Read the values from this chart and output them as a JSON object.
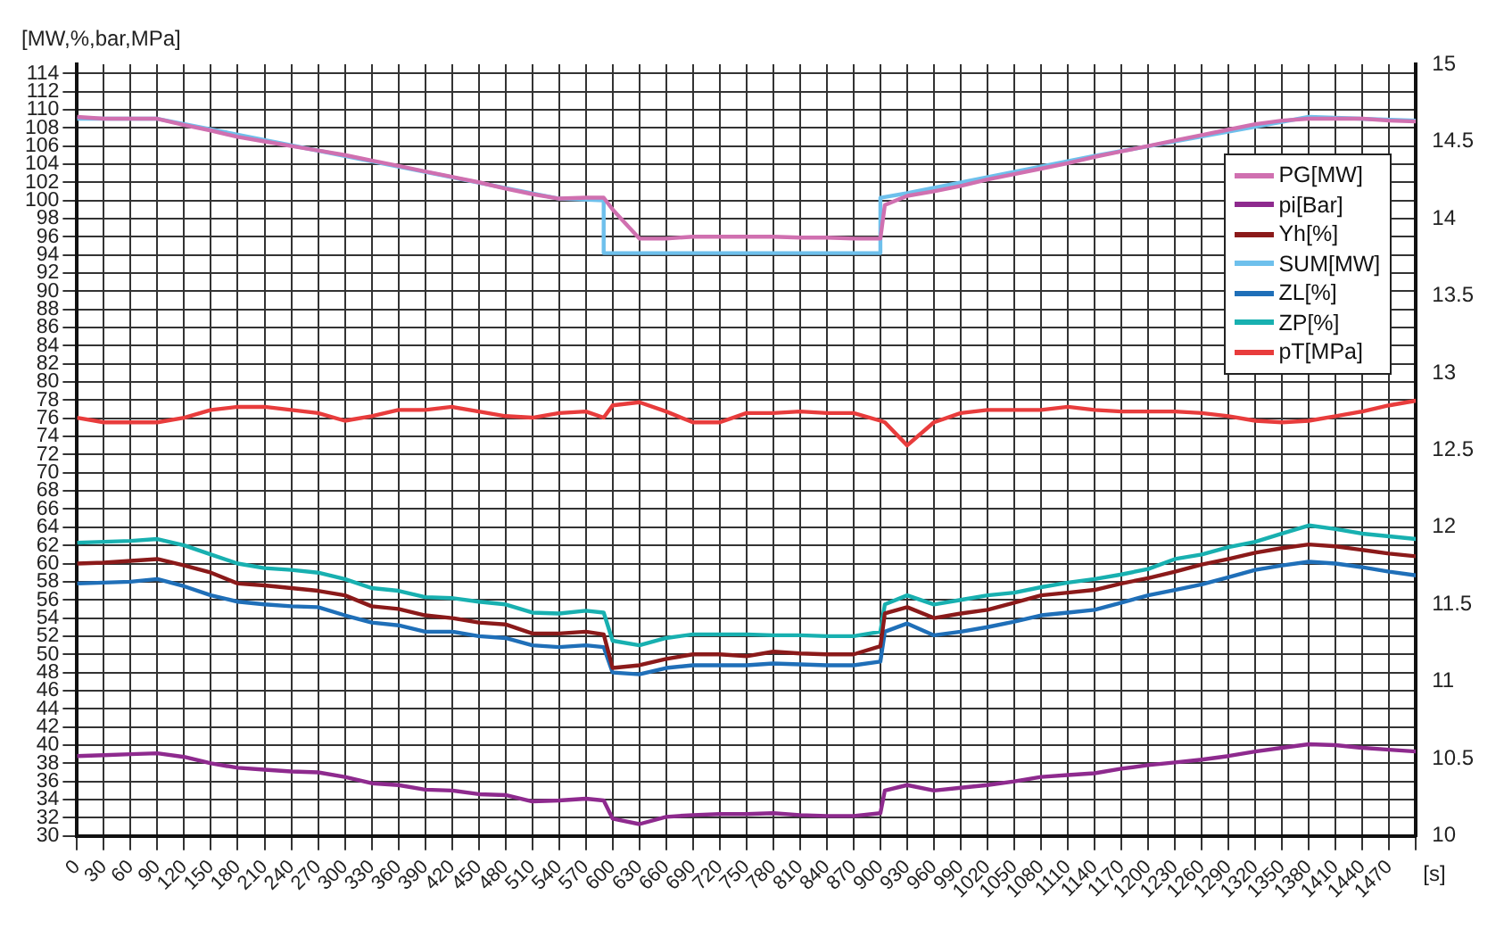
{
  "chart_data": {
    "type": "line",
    "ylabel": "[MW,%,bar,MPa]",
    "xlabel": "[s]",
    "x": [
      0,
      30,
      60,
      90,
      120,
      150,
      180,
      210,
      240,
      270,
      300,
      330,
      360,
      390,
      420,
      450,
      480,
      510,
      540,
      570,
      590,
      600,
      630,
      660,
      690,
      720,
      750,
      780,
      810,
      840,
      870,
      900,
      905,
      930,
      960,
      990,
      1020,
      1050,
      1080,
      1110,
      1140,
      1170,
      1200,
      1230,
      1260,
      1290,
      1320,
      1350,
      1380,
      1410,
      1440,
      1470,
      1500
    ],
    "series": [
      {
        "name": "PG[MW]",
        "color": "#d070b0",
        "values": [
          109.2,
          109,
          109,
          109,
          108.3,
          107.7,
          107,
          106.5,
          106,
          105.5,
          105,
          104.4,
          103.8,
          103.2,
          102.6,
          102,
          101.3,
          100.7,
          100.2,
          100.3,
          100.3,
          99,
          95.8,
          95.8,
          96,
          96,
          96,
          96,
          95.9,
          95.9,
          95.8,
          95.8,
          99.5,
          100.5,
          101,
          101.6,
          102.3,
          102.9,
          103.5,
          104.1,
          104.8,
          105.4,
          106,
          106.6,
          107.2,
          107.8,
          108.4,
          108.8,
          109,
          109,
          109,
          108.8,
          108.7
        ]
      },
      {
        "name": "pi[Bar]",
        "color": "#8e2a8e",
        "values": [
          38.8,
          38.9,
          39,
          39.1,
          38.7,
          38,
          37.5,
          37.3,
          37.1,
          37,
          36.5,
          35.8,
          35.6,
          35.1,
          35,
          34.6,
          34.5,
          33.8,
          33.9,
          34.1,
          33.9,
          31.9,
          31.3,
          32.1,
          32.3,
          32.4,
          32.4,
          32.5,
          32.3,
          32.2,
          32.2,
          32.5,
          35,
          35.6,
          35,
          35.3,
          35.6,
          36,
          36.5,
          36.7,
          36.9,
          37.4,
          37.8,
          38.1,
          38.4,
          38.8,
          39.3,
          39.7,
          40.1,
          40,
          39.7,
          39.5,
          39.3
        ]
      },
      {
        "name": "Yh[%]",
        "color": "#8b1a1a",
        "values": [
          60,
          60.1,
          60.3,
          60.5,
          59.8,
          59,
          57.8,
          57.6,
          57.3,
          57,
          56.5,
          55.3,
          55,
          54.3,
          54,
          53.5,
          53.3,
          52.3,
          52.3,
          52.5,
          52.2,
          48.5,
          48.8,
          49.5,
          50,
          50,
          49.8,
          50.3,
          50.1,
          50,
          50,
          50.9,
          54.5,
          55.2,
          54,
          54.5,
          54.9,
          55.7,
          56.5,
          56.8,
          57.1,
          57.8,
          58.4,
          59.1,
          59.9,
          60.5,
          61.2,
          61.7,
          62.1,
          61.9,
          61.5,
          61.1,
          60.8
        ]
      },
      {
        "name": "SUM[MW]",
        "color": "#6ec0ec",
        "x": [
          0,
          90,
          300,
          540,
          590,
          590,
          900,
          900,
          930,
          1140,
          1380,
          1500
        ],
        "values": [
          109,
          109,
          104.9,
          100.2,
          100,
          94.2,
          94.2,
          100.3,
          100.8,
          104.9,
          109.2,
          108.8
        ]
      },
      {
        "name": "ZL[%]",
        "color": "#1f6fb8",
        "values": [
          57.8,
          57.9,
          58,
          58.3,
          57.5,
          56.5,
          55.8,
          55.5,
          55.3,
          55.2,
          54.3,
          53.5,
          53.2,
          52.5,
          52.5,
          52,
          51.8,
          51,
          50.8,
          51,
          50.8,
          48,
          47.8,
          48.5,
          48.8,
          48.8,
          48.8,
          49,
          48.9,
          48.8,
          48.8,
          49.2,
          52.5,
          53.4,
          52.1,
          52.5,
          53,
          53.6,
          54.3,
          54.6,
          54.9,
          55.7,
          56.5,
          57.1,
          57.7,
          58.5,
          59.3,
          59.8,
          60.2,
          60,
          59.6,
          59.1,
          58.7
        ]
      },
      {
        "name": "ZP[%]",
        "color": "#18b0b0",
        "values": [
          62.3,
          62.4,
          62.5,
          62.7,
          62,
          61,
          60,
          59.5,
          59.3,
          59,
          58.3,
          57.3,
          57,
          56.3,
          56.2,
          55.8,
          55.5,
          54.6,
          54.5,
          54.8,
          54.6,
          51.5,
          51,
          51.8,
          52.2,
          52.2,
          52.2,
          52.1,
          52.1,
          52,
          52,
          52.5,
          55.5,
          56.5,
          55.5,
          56,
          56.5,
          56.8,
          57.4,
          57.9,
          58.3,
          58.8,
          59.4,
          60.5,
          61,
          61.8,
          62.4,
          63.3,
          64.2,
          63.8,
          63.3,
          63,
          62.7
        ]
      },
      {
        "name": "pT[MPa]",
        "color": "#e83c3c",
        "axis": "y2",
        "values": [
          12.71,
          12.68,
          12.68,
          12.68,
          12.71,
          12.76,
          12.78,
          12.78,
          12.76,
          12.74,
          12.69,
          12.72,
          12.76,
          12.76,
          12.78,
          12.75,
          12.72,
          12.71,
          12.74,
          12.75,
          12.71,
          12.79,
          12.81,
          12.75,
          12.68,
          12.68,
          12.74,
          12.74,
          12.75,
          12.74,
          12.74,
          12.69,
          12.68,
          12.53,
          12.68,
          12.74,
          12.76,
          12.76,
          12.76,
          12.78,
          12.76,
          12.75,
          12.75,
          12.75,
          12.74,
          12.72,
          12.69,
          12.68,
          12.69,
          12.72,
          12.75,
          12.79,
          12.82
        ]
      }
    ],
    "xlim": [
      0,
      1500
    ],
    "xticks": [
      0,
      30,
      60,
      90,
      120,
      150,
      180,
      210,
      240,
      270,
      300,
      330,
      360,
      390,
      420,
      450,
      480,
      510,
      540,
      570,
      600,
      630,
      660,
      690,
      720,
      750,
      780,
      810,
      840,
      870,
      900,
      930,
      960,
      990,
      1020,
      1050,
      1080,
      1110,
      1140,
      1170,
      1200,
      1230,
      1260,
      1290,
      1320,
      1350,
      1380,
      1410,
      1440,
      1470,
      {
        "value": 1500,
        "label": null
      }
    ],
    "ylim": [
      30,
      115
    ],
    "yticks": [
      30,
      32,
      34,
      36,
      38,
      40,
      42,
      44,
      46,
      48,
      50,
      52,
      54,
      56,
      58,
      60,
      62,
      64,
      66,
      68,
      70,
      72,
      74,
      76,
      78,
      80,
      82,
      84,
      86,
      88,
      90,
      92,
      94,
      96,
      98,
      100,
      102,
      104,
      106,
      108,
      110,
      112,
      114
    ],
    "y2lim": [
      10,
      15
    ],
    "y2ticks": [
      10,
      10.5,
      11,
      11.5,
      12,
      12.5,
      13,
      13.5,
      14,
      14.5,
      15
    ],
    "grid": true,
    "legend": "top right",
    "line_style": "solid"
  }
}
